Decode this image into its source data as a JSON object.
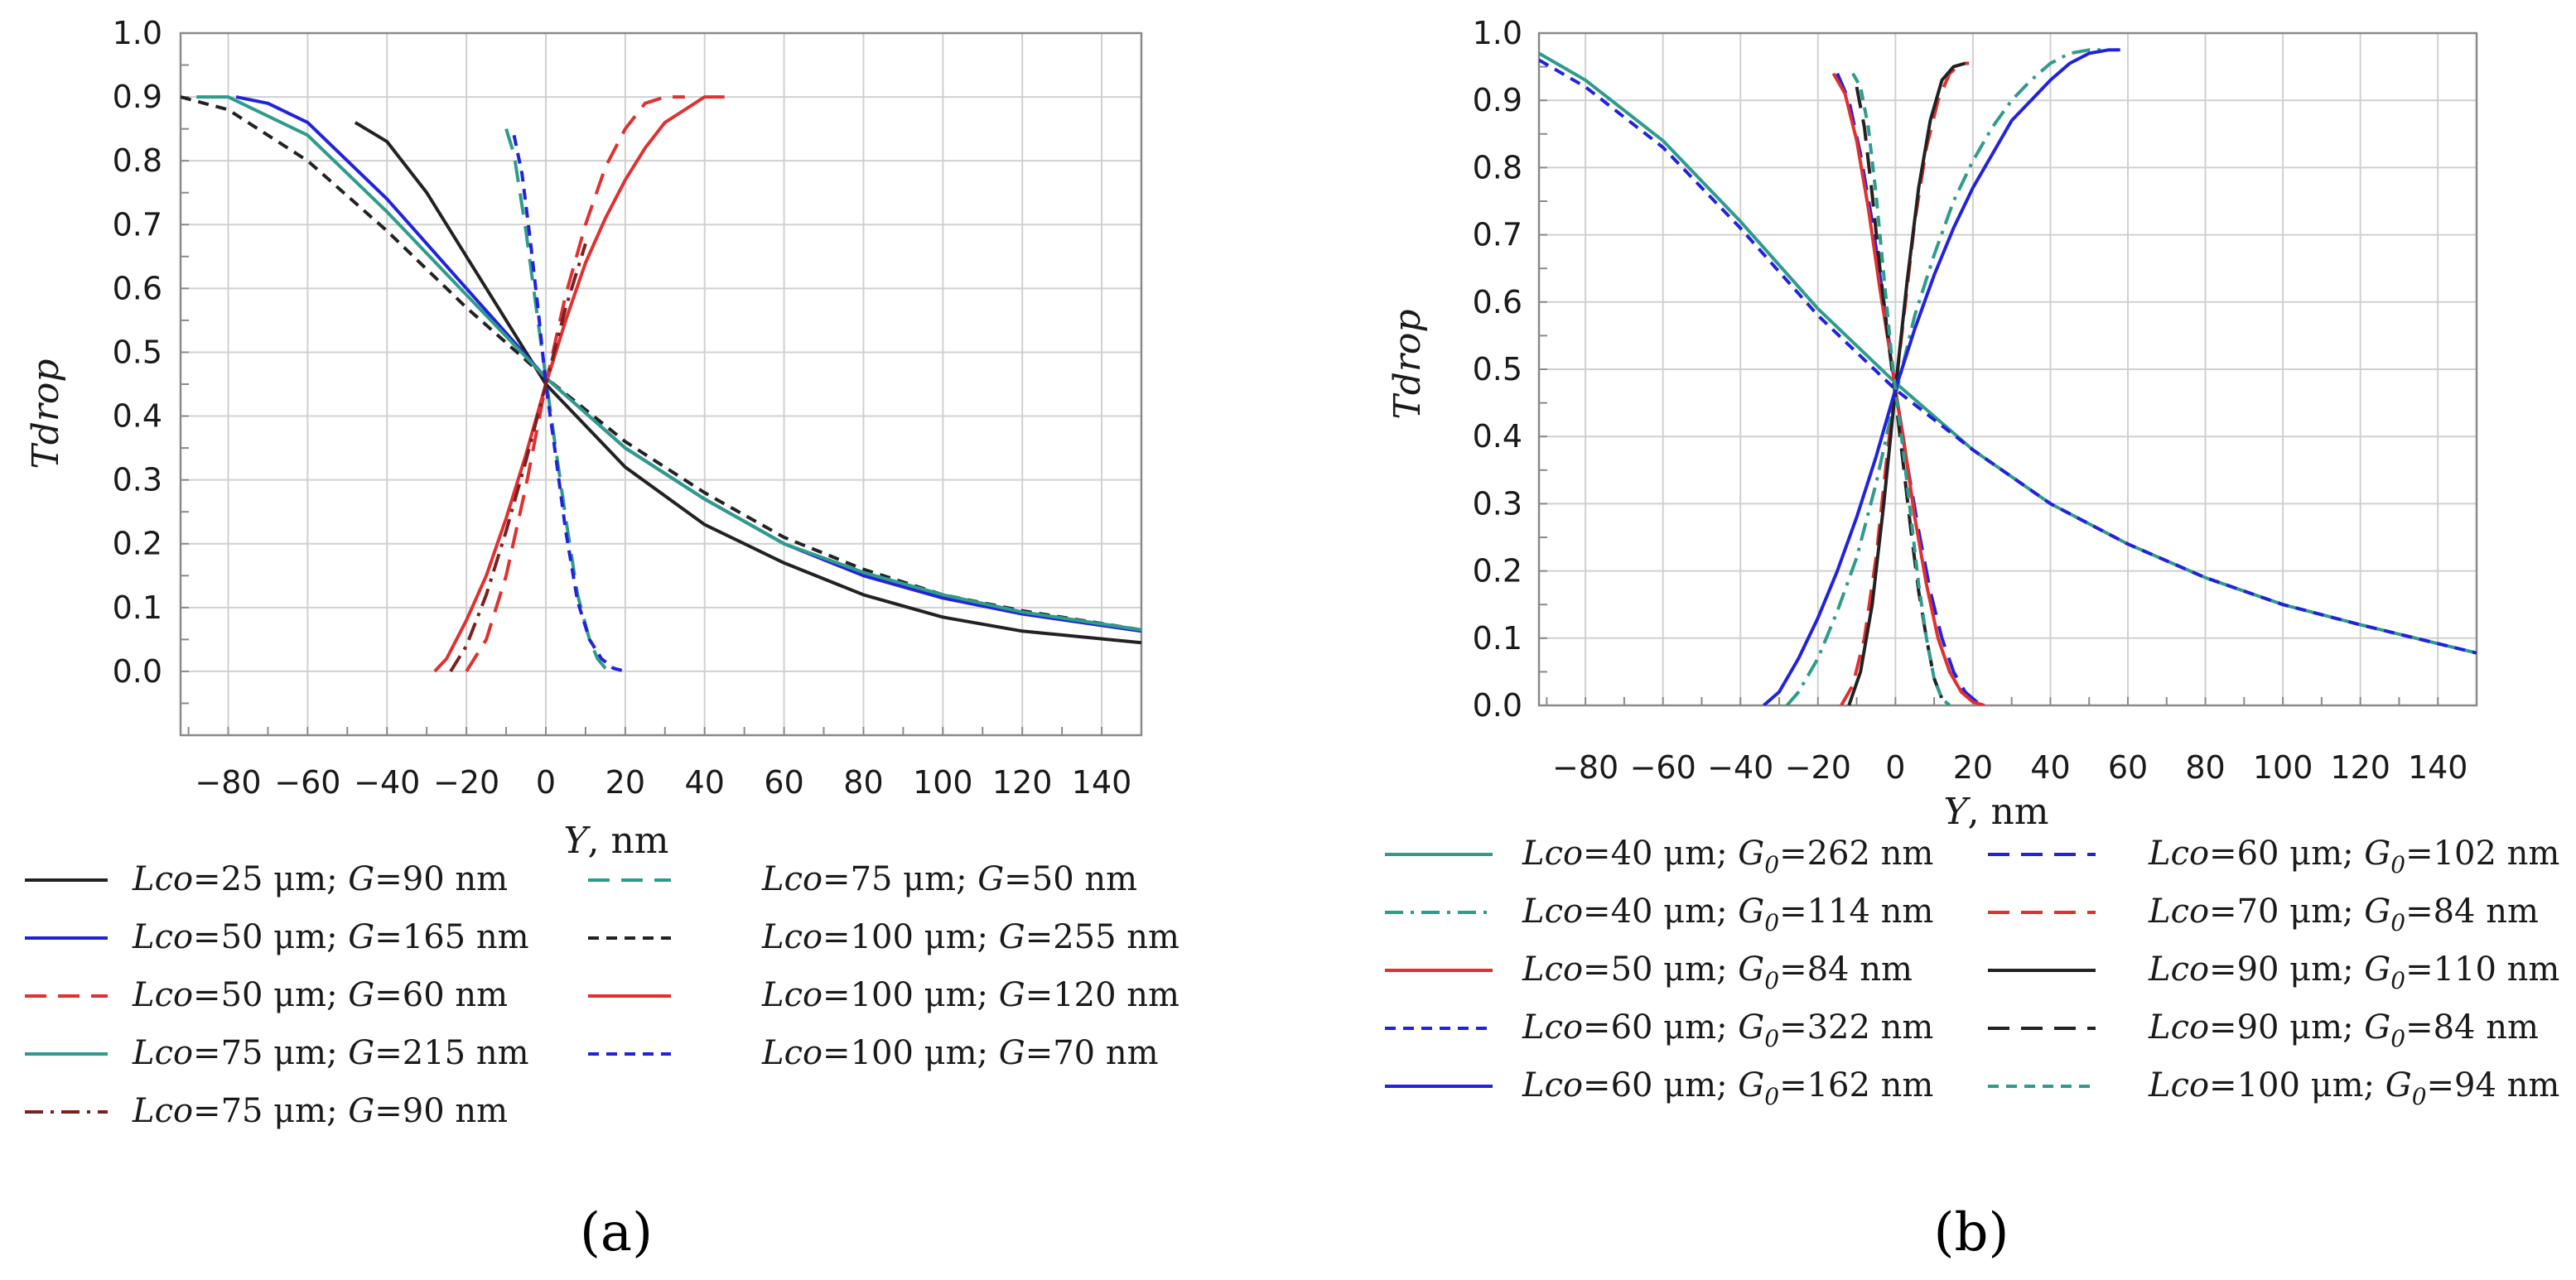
{
  "chart_data": [
    {
      "panel_label": "(a)",
      "type": "line",
      "xlabel": "Y, nm",
      "ylabel": "Tdrop",
      "xlim": [
        -92,
        150
      ],
      "ylim": [
        -0.1,
        1.0
      ],
      "xticks": [
        -80,
        -60,
        -40,
        -20,
        0,
        20,
        40,
        60,
        80,
        100,
        120,
        140
      ],
      "yticks": [
        0.0,
        0.1,
        0.2,
        0.3,
        0.4,
        0.5,
        0.6,
        0.7,
        0.8,
        0.9,
        1.0
      ],
      "grid": true,
      "legend": {
        "position": "below",
        "entries": [
          {
            "prefix": "Lco",
            "mid": "=25 μm; ",
            "g": "G",
            "sub": "",
            "suffix": "=90 nm"
          },
          {
            "prefix": "Lco",
            "mid": "=75 μm; ",
            "g": "G",
            "sub": "",
            "suffix": "=50 nm"
          },
          {
            "prefix": "Lco",
            "mid": "=50 μm; ",
            "g": "G",
            "sub": "",
            "suffix": "=165 nm"
          },
          {
            "prefix": "Lco",
            "mid": "=100 μm; ",
            "g": "G",
            "sub": "",
            "suffix": "=255 nm"
          },
          {
            "prefix": "Lco",
            "mid": "=50 μm; ",
            "g": "G",
            "sub": "",
            "suffix": "=60 nm"
          },
          {
            "prefix": "Lco",
            "mid": "=100 μm; ",
            "g": "G",
            "sub": "",
            "suffix": "=120 nm"
          },
          {
            "prefix": "Lco",
            "mid": "=75 μm; ",
            "g": "G",
            "sub": "",
            "suffix": "=215 nm"
          },
          {
            "prefix": "Lco",
            "mid": "=100 μm; ",
            "g": "G",
            "sub": "",
            "suffix": "=70 nm"
          },
          {
            "prefix": "Lco",
            "mid": "=75 μm; ",
            "g": "G",
            "sub": "",
            "suffix": "=90 nm"
          }
        ]
      },
      "series": [
        {
          "name": "Lco=25 μm; G=90 nm",
          "color": "#222222",
          "dash": "solid",
          "x": [
            -48,
            -40,
            -30,
            -20,
            -10,
            0,
            20,
            40,
            60,
            80,
            100,
            120,
            150
          ],
          "y": [
            0.86,
            0.83,
            0.75,
            0.65,
            0.55,
            0.45,
            0.32,
            0.23,
            0.17,
            0.12,
            0.085,
            0.063,
            0.045
          ]
        },
        {
          "name": "Lco=75 μm; G=50 nm",
          "color": "#2e9b8c",
          "dash": "longdash",
          "x": [
            -10,
            -8,
            -5,
            -2,
            0,
            2,
            5,
            8,
            11,
            13,
            15,
            16
          ],
          "y": [
            0.85,
            0.81,
            0.69,
            0.55,
            0.46,
            0.37,
            0.24,
            0.12,
            0.05,
            0.02,
            0.005,
            0.0
          ]
        },
        {
          "name": "Lco=50 μm; G=165 nm",
          "color": "#2222dd",
          "dash": "solid",
          "x": [
            -78,
            -70,
            -60,
            -40,
            -20,
            0,
            20,
            40,
            60,
            80,
            100,
            120,
            150
          ],
          "y": [
            0.9,
            0.89,
            0.86,
            0.74,
            0.6,
            0.46,
            0.35,
            0.27,
            0.2,
            0.15,
            0.115,
            0.09,
            0.063
          ]
        },
        {
          "name": "Lco=100 μm; G=255 nm",
          "color": "#222222",
          "dash": "shortdash",
          "x": [
            -92,
            -80,
            -60,
            -40,
            -20,
            0,
            20,
            40,
            60,
            80,
            100,
            120,
            150
          ],
          "y": [
            0.9,
            0.88,
            0.8,
            0.69,
            0.57,
            0.46,
            0.36,
            0.28,
            0.21,
            0.16,
            0.12,
            0.095,
            0.065
          ]
        },
        {
          "name": "Lco=50 μm; G=60 nm",
          "color": "#e03030",
          "dash": "longdash",
          "x": [
            -20,
            -15,
            -10,
            -5,
            0,
            5,
            10,
            15,
            20,
            25,
            30,
            35
          ],
          "y": [
            0.0,
            0.05,
            0.15,
            0.29,
            0.45,
            0.59,
            0.7,
            0.79,
            0.85,
            0.89,
            0.9,
            0.9
          ]
        },
        {
          "name": "Lco=100 μm; G=120 nm",
          "color": "#e03030",
          "dash": "solid",
          "x": [
            -28,
            -25,
            -20,
            -15,
            -10,
            -5,
            0,
            5,
            10,
            15,
            20,
            25,
            30,
            35,
            40,
            45
          ],
          "y": [
            0.0,
            0.02,
            0.08,
            0.15,
            0.24,
            0.34,
            0.45,
            0.55,
            0.64,
            0.71,
            0.77,
            0.82,
            0.86,
            0.88,
            0.9,
            0.9
          ]
        },
        {
          "name": "Lco=75 μm; G=215 nm",
          "color": "#2e9b8c",
          "dash": "solid",
          "x": [
            -88,
            -80,
            -60,
            -40,
            -20,
            0,
            20,
            40,
            60,
            80,
            100,
            120,
            150
          ],
          "y": [
            0.9,
            0.9,
            0.84,
            0.72,
            0.59,
            0.46,
            0.35,
            0.27,
            0.2,
            0.155,
            0.12,
            0.093,
            0.065
          ]
        },
        {
          "name": "Lco=100 μm; G=70 nm",
          "color": "#2222dd",
          "dash": "shortdash",
          "x": [
            -8,
            -6,
            -4,
            -2,
            0,
            2,
            5,
            8,
            11,
            14,
            17,
            20
          ],
          "y": [
            0.84,
            0.78,
            0.68,
            0.57,
            0.45,
            0.36,
            0.22,
            0.11,
            0.05,
            0.02,
            0.005,
            0.0
          ]
        },
        {
          "name": "Lco=75 μm; G=90 nm",
          "color": "#7a2020",
          "dash": "dashdot",
          "x": [
            -24,
            -20,
            -15,
            -10,
            -5,
            0,
            5,
            10
          ],
          "y": [
            0.0,
            0.04,
            0.12,
            0.22,
            0.33,
            0.45,
            0.57,
            0.67
          ]
        }
      ]
    },
    {
      "panel_label": "(b)",
      "type": "line",
      "xlabel": "Y, nm",
      "ylabel": "Tdrop",
      "xlim": [
        -92,
        150
      ],
      "ylim": [
        0.0,
        1.0
      ],
      "xticks": [
        -80,
        -60,
        -40,
        -20,
        0,
        20,
        40,
        60,
        80,
        100,
        120,
        140
      ],
      "yticks": [
        0.0,
        0.1,
        0.2,
        0.3,
        0.4,
        0.5,
        0.6,
        0.7,
        0.8,
        0.9,
        1.0
      ],
      "grid": true,
      "legend": {
        "position": "below",
        "entries": [
          {
            "prefix": "Lco",
            "mid": "=40 μm; ",
            "g": "G",
            "sub": "0",
            "suffix": "=262 nm"
          },
          {
            "prefix": "Lco",
            "mid": "=60 μm; ",
            "g": "G",
            "sub": "0",
            "suffix": "=102 nm"
          },
          {
            "prefix": "Lco",
            "mid": "=40 μm; ",
            "g": "G",
            "sub": "0",
            "suffix": "=114 nm"
          },
          {
            "prefix": "Lco",
            "mid": "=70 μm; ",
            "g": "G",
            "sub": "0",
            "suffix": "=84 nm"
          },
          {
            "prefix": "Lco",
            "mid": "=50 μm; ",
            "g": "G",
            "sub": "0",
            "suffix": "=84 nm"
          },
          {
            "prefix": "Lco",
            "mid": "=90 μm; ",
            "g": "G",
            "sub": "0",
            "suffix": "=110 nm"
          },
          {
            "prefix": "Lco",
            "mid": "=60 μm; ",
            "g": "G",
            "sub": "0",
            "suffix": "=322 nm"
          },
          {
            "prefix": "Lco",
            "mid": "=90 μm; ",
            "g": "G",
            "sub": "0",
            "suffix": "=84 nm"
          },
          {
            "prefix": "Lco",
            "mid": "=60 μm; ",
            "g": "G",
            "sub": "0",
            "suffix": "=162 nm"
          },
          {
            "prefix": "Lco",
            "mid": "=100 μm; ",
            "g": "G",
            "sub": "0",
            "suffix": "=94 nm"
          }
        ]
      },
      "series": [
        {
          "name": "Lco=40 μm; G0=262 nm",
          "color": "#2e9b8c",
          "dash": "solid",
          "x": [
            -92,
            -80,
            -60,
            -40,
            -20,
            0,
            20,
            40,
            60,
            80,
            100,
            120,
            150
          ],
          "y": [
            0.97,
            0.93,
            0.84,
            0.72,
            0.59,
            0.48,
            0.38,
            0.3,
            0.24,
            0.19,
            0.15,
            0.12,
            0.078
          ]
        },
        {
          "name": "Lco=60 μm; G0=102 nm",
          "color": "#2222dd",
          "dash": "longdash",
          "x": [
            -15,
            -12,
            -9,
            -6,
            -3,
            0,
            3,
            6,
            9,
            12,
            15,
            18,
            21,
            24
          ],
          "y": [
            0.94,
            0.9,
            0.82,
            0.72,
            0.6,
            0.47,
            0.36,
            0.26,
            0.17,
            0.1,
            0.05,
            0.02,
            0.005,
            0.0
          ]
        },
        {
          "name": "Lco=40 μm; G0=114 nm",
          "color": "#2e9b8c",
          "dash": "dashdot",
          "x": [
            -28,
            -25,
            -20,
            -15,
            -10,
            -5,
            0,
            5,
            10,
            15,
            20,
            25,
            30,
            35,
            40,
            45,
            50,
            55
          ],
          "y": [
            0.0,
            0.02,
            0.07,
            0.14,
            0.22,
            0.33,
            0.46,
            0.58,
            0.67,
            0.75,
            0.81,
            0.86,
            0.9,
            0.93,
            0.955,
            0.97,
            0.975,
            0.975
          ]
        },
        {
          "name": "Lco=70 μm; G0=84 nm",
          "color": "#e03030",
          "dash": "longdash",
          "x": [
            -14,
            -11,
            -8,
            -5,
            -2,
            0,
            2,
            5,
            8,
            11,
            14,
            17,
            19
          ],
          "y": [
            0.0,
            0.03,
            0.1,
            0.22,
            0.38,
            0.47,
            0.57,
            0.72,
            0.83,
            0.9,
            0.94,
            0.955,
            0.955
          ]
        },
        {
          "name": "Lco=50 μm; G0=84 nm",
          "color": "#e03030",
          "dash": "solid",
          "x": [
            -16,
            -13,
            -10,
            -7,
            -4,
            -1,
            0,
            2,
            5,
            8,
            11,
            14,
            17,
            20,
            23
          ],
          "y": [
            0.94,
            0.91,
            0.84,
            0.74,
            0.62,
            0.51,
            0.47,
            0.4,
            0.28,
            0.18,
            0.1,
            0.05,
            0.02,
            0.005,
            0.0
          ]
        },
        {
          "name": "Lco=90 μm; G0=110 nm",
          "color": "#222222",
          "dash": "solid",
          "x": [
            -12,
            -9,
            -6,
            -3,
            0,
            3,
            6,
            9,
            12,
            15,
            18
          ],
          "y": [
            0.0,
            0.05,
            0.15,
            0.3,
            0.47,
            0.63,
            0.77,
            0.87,
            0.93,
            0.95,
            0.955
          ]
        },
        {
          "name": "Lco=60 μm; G0=322 nm",
          "color": "#2222dd",
          "dash": "shortdash",
          "x": [
            -92,
            -80,
            -60,
            -40,
            -20,
            0,
            20,
            40,
            60,
            80,
            100,
            120,
            150
          ],
          "y": [
            0.96,
            0.92,
            0.83,
            0.71,
            0.58,
            0.47,
            0.38,
            0.3,
            0.24,
            0.19,
            0.15,
            0.12,
            0.078
          ]
        },
        {
          "name": "Lco=90 μm; G0=84 nm",
          "color": "#222222",
          "dash": "longdash",
          "x": [
            -10,
            -8,
            -6,
            -4,
            -2,
            0,
            2,
            4,
            6,
            8,
            10,
            12,
            14
          ],
          "y": [
            0.92,
            0.86,
            0.76,
            0.65,
            0.55,
            0.46,
            0.36,
            0.26,
            0.17,
            0.1,
            0.04,
            0.01,
            0.0
          ]
        },
        {
          "name": "Lco=60 μm; G0=162 nm",
          "color": "#2222dd",
          "dash": "solid",
          "x": [
            -34,
            -30,
            -25,
            -20,
            -15,
            -10,
            -5,
            0,
            5,
            10,
            15,
            20,
            25,
            30,
            35,
            40,
            45,
            50,
            55,
            58
          ],
          "y": [
            0.0,
            0.02,
            0.07,
            0.13,
            0.2,
            0.28,
            0.37,
            0.47,
            0.56,
            0.64,
            0.71,
            0.77,
            0.82,
            0.87,
            0.9,
            0.93,
            0.955,
            0.97,
            0.975,
            0.975
          ]
        },
        {
          "name": "Lco=100 μm; G0=94 nm",
          "color": "#2e9b8c",
          "dash": "shortdash",
          "x": [
            -11,
            -9,
            -7,
            -5,
            -3,
            -1,
            0,
            2,
            4,
            6,
            8,
            10,
            12,
            14
          ],
          "y": [
            0.94,
            0.92,
            0.86,
            0.76,
            0.64,
            0.52,
            0.47,
            0.38,
            0.28,
            0.18,
            0.1,
            0.04,
            0.01,
            0.0
          ]
        }
      ]
    }
  ]
}
